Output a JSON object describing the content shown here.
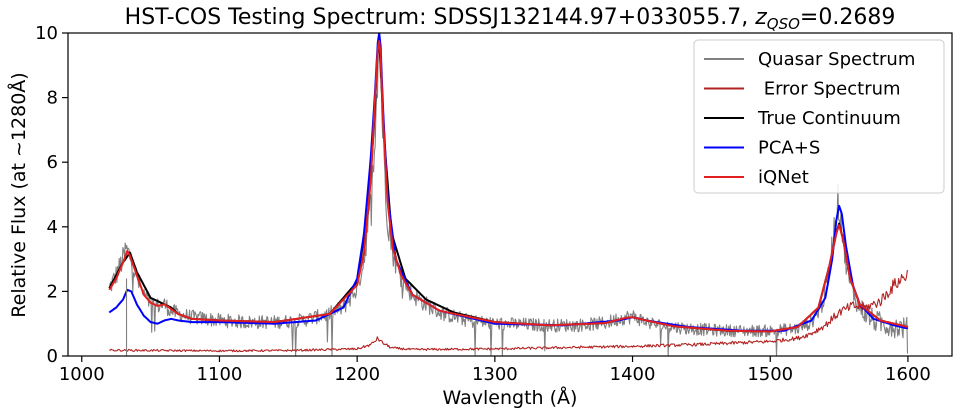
{
  "chart_data": {
    "type": "line",
    "title": "HST-COS Testing Spectrum: SDSSJ132144.97+033055.7, ",
    "title_z_symbol": "z",
    "title_z_subscript": "QSO",
    "title_z_value": "=0.2689",
    "xlabel": "Wavlength (Å)",
    "ylabel": "Relative Flux (at ~1280Å)",
    "xlim": [
      1020,
      1610
    ],
    "ylim": [
      0,
      10
    ],
    "x_ticks": [
      1000,
      1100,
      1200,
      1300,
      1400,
      1500,
      1600
    ],
    "x_tick_labels": [
      "1000",
      "1100",
      "1200",
      "1300",
      "1400",
      "1500",
      "1600"
    ],
    "y_ticks": [
      0,
      2,
      4,
      6,
      8,
      10
    ],
    "y_tick_labels": [
      "0",
      "2",
      "4",
      "6",
      "8",
      "10"
    ],
    "grid": false,
    "legend_placement": "top-right",
    "series": [
      {
        "name": "Quasar Spectrum",
        "color": "#808080",
        "style": "noisy",
        "x": [
          1020,
          1025,
          1030,
          1032,
          1035,
          1040,
          1045,
          1050,
          1055,
          1060,
          1065,
          1070,
          1080,
          1090,
          1100,
          1120,
          1140,
          1160,
          1180,
          1190,
          1200,
          1205,
          1210,
          1213,
          1215,
          1216,
          1217,
          1219,
          1222,
          1226,
          1230,
          1240,
          1250,
          1260,
          1280,
          1300,
          1320,
          1340,
          1360,
          1380,
          1390,
          1395,
          1400,
          1405,
          1410,
          1420,
          1440,
          1460,
          1480,
          1500,
          1520,
          1530,
          1538,
          1543,
          1547,
          1549,
          1551,
          1554,
          1558,
          1565,
          1575,
          1585,
          1600
        ],
        "values": [
          2.1,
          2.5,
          3.0,
          3.3,
          3.1,
          2.4,
          1.9,
          1.6,
          1.55,
          1.6,
          1.4,
          1.3,
          1.2,
          1.15,
          1.1,
          1.05,
          1.05,
          1.1,
          1.3,
          1.5,
          2.1,
          3.0,
          4.8,
          7.0,
          9.2,
          10.0,
          9.0,
          6.5,
          4.3,
          3.2,
          2.6,
          1.9,
          1.6,
          1.35,
          1.1,
          1.0,
          0.98,
          0.95,
          0.95,
          1.02,
          1.15,
          1.2,
          1.22,
          1.15,
          1.05,
          0.95,
          0.85,
          0.8,
          0.78,
          0.78,
          0.85,
          1.05,
          1.6,
          2.7,
          4.2,
          4.8,
          4.4,
          3.2,
          2.2,
          1.5,
          1.1,
          0.95,
          0.85
        ]
      },
      {
        "name": " Error Spectrum",
        "color": "#b22222",
        "style": "noisy-low",
        "x": [
          1020,
          1060,
          1100,
          1150,
          1200,
          1210,
          1215,
          1218,
          1225,
          1240,
          1300,
          1350,
          1400,
          1450,
          1500,
          1520,
          1530,
          1540,
          1550,
          1560,
          1570,
          1580,
          1590,
          1600
        ],
        "values": [
          0.18,
          0.17,
          0.16,
          0.17,
          0.22,
          0.35,
          0.55,
          0.42,
          0.25,
          0.2,
          0.22,
          0.26,
          0.3,
          0.36,
          0.45,
          0.55,
          0.7,
          0.95,
          1.35,
          1.55,
          1.5,
          1.7,
          2.2,
          2.55
        ]
      },
      {
        "name": "True Continuum",
        "color": "#000000",
        "style": "smooth",
        "x": [
          1020,
          1030,
          1035,
          1040,
          1050,
          1060,
          1065,
          1070,
          1080,
          1100,
          1140,
          1180,
          1200,
          1208,
          1212,
          1215,
          1216,
          1217,
          1220,
          1225,
          1235,
          1250,
          1270,
          1300,
          1340,
          1380,
          1395,
          1400,
          1410,
          1430,
          1470,
          1500,
          1520,
          1535,
          1543,
          1548,
          1550,
          1553,
          1558,
          1565,
          1580,
          1600
        ],
        "values": [
          2.1,
          2.9,
          3.2,
          2.6,
          1.8,
          1.6,
          1.5,
          1.3,
          1.15,
          1.1,
          1.05,
          1.3,
          2.3,
          4.5,
          7.0,
          9.5,
          9.7,
          9.0,
          6.5,
          3.8,
          2.4,
          1.75,
          1.35,
          1.05,
          0.95,
          1.02,
          1.18,
          1.2,
          1.1,
          0.92,
          0.78,
          0.76,
          0.9,
          1.5,
          2.8,
          3.8,
          4.1,
          3.6,
          2.4,
          1.6,
          1.1,
          0.9
        ]
      },
      {
        "name": "PCA+S",
        "color": "#0000ff",
        "style": "smooth",
        "x": [
          1020,
          1025,
          1030,
          1033,
          1036,
          1040,
          1045,
          1050,
          1055,
          1060,
          1065,
          1070,
          1080,
          1100,
          1140,
          1170,
          1190,
          1200,
          1205,
          1210,
          1213,
          1215,
          1216,
          1217,
          1219,
          1222,
          1228,
          1240,
          1260,
          1300,
          1350,
          1390,
          1400,
          1410,
          1440,
          1480,
          1510,
          1530,
          1540,
          1545,
          1548,
          1550,
          1552,
          1555,
          1560,
          1565,
          1575,
          1590,
          1600
        ],
        "values": [
          1.35,
          1.5,
          1.75,
          2.05,
          2.0,
          1.6,
          1.25,
          1.05,
          1.0,
          1.1,
          1.15,
          1.1,
          1.05,
          1.05,
          1.0,
          1.1,
          1.5,
          2.4,
          3.8,
          6.2,
          8.2,
          9.7,
          10.0,
          9.6,
          7.5,
          5.0,
          3.0,
          1.9,
          1.4,
          1.0,
          0.95,
          1.1,
          1.2,
          1.1,
          0.9,
          0.78,
          0.78,
          1.1,
          1.8,
          3.0,
          4.2,
          4.65,
          4.4,
          3.4,
          2.2,
          1.6,
          1.15,
          0.95,
          0.85
        ]
      },
      {
        "name": "iQNet",
        "color": "#e32020",
        "style": "smooth",
        "x": [
          1020,
          1025,
          1030,
          1033,
          1035,
          1040,
          1045,
          1050,
          1055,
          1060,
          1065,
          1070,
          1080,
          1100,
          1140,
          1180,
          1200,
          1205,
          1210,
          1213,
          1215,
          1216,
          1217,
          1219,
          1222,
          1226,
          1232,
          1240,
          1260,
          1300,
          1340,
          1380,
          1395,
          1400,
          1410,
          1430,
          1470,
          1500,
          1520,
          1535,
          1543,
          1548,
          1550,
          1553,
          1558,
          1565,
          1580,
          1600
        ],
        "values": [
          2.05,
          2.4,
          2.9,
          3.25,
          3.1,
          2.5,
          1.9,
          1.65,
          1.55,
          1.6,
          1.45,
          1.3,
          1.15,
          1.1,
          1.05,
          1.3,
          2.2,
          3.2,
          5.5,
          8.0,
          9.5,
          9.75,
          9.3,
          7.2,
          4.8,
          3.3,
          2.5,
          1.9,
          1.4,
          1.05,
          0.95,
          1.02,
          1.18,
          1.2,
          1.1,
          0.92,
          0.78,
          0.76,
          0.9,
          1.5,
          2.8,
          3.8,
          4.05,
          3.6,
          2.4,
          1.6,
          1.1,
          0.9
        ]
      }
    ]
  }
}
